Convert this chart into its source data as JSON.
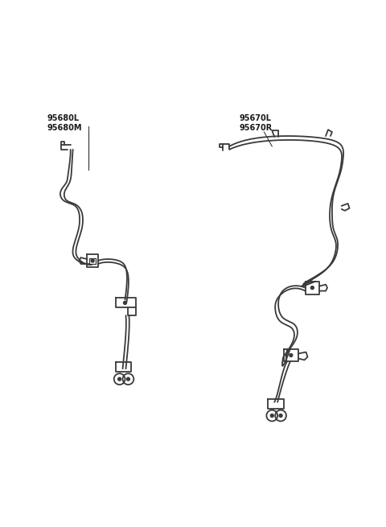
{
  "background_color": "#ffffff",
  "line_color": "#3a3a3a",
  "line_width": 1.3,
  "label_color": "#1a1a1a",
  "label_fontsize": 7.0,
  "left_label_line1": "95680L",
  "left_label_line2": "95680M",
  "right_label_line1": "95670L",
  "right_label_line2": "95670R",
  "figsize": [
    4.8,
    6.55
  ],
  "dpi": 100
}
